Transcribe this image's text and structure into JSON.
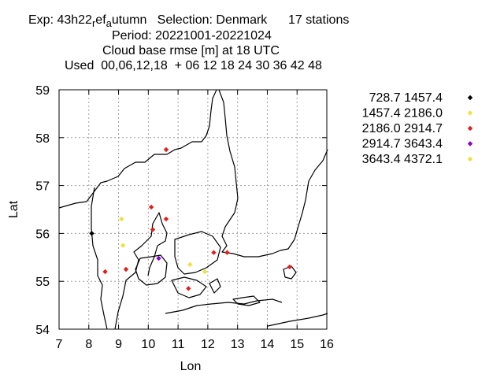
{
  "chart_data": {
    "type": "scatter",
    "title": {
      "line1_prefix": "Exp: 43h22",
      "line1_sub1": "r",
      "line1_mid": "ef",
      "line1_sub2": "a",
      "line1_rest": "utumn   Selection: Denmark      17 stations",
      "line2": "Period: 20221001-20221024",
      "line3": "Cloud base rmse [m] at  18 UTC",
      "line4": "Used  00,06,12,18  + 06 12 18 24 30 36 42 48"
    },
    "xlabel": "Lon",
    "ylabel": "Lat",
    "xlim": [
      7,
      16
    ],
    "ylim": [
      54,
      59
    ],
    "xticks": [
      "7",
      "8",
      "9",
      "10",
      "11",
      "12",
      "13",
      "14",
      "15",
      "16"
    ],
    "yticks": [
      "54",
      "55",
      "56",
      "57",
      "58",
      "59"
    ],
    "grid": true,
    "legend_position": "right",
    "series": [
      {
        "name": "728.7 1457.4",
        "color": "#000000",
        "points": [
          [
            8.1,
            56.0
          ]
        ]
      },
      {
        "name": "1457.4 2186.0",
        "color": "#f0e040",
        "points": [
          [
            9.1,
            56.3
          ],
          [
            9.15,
            55.75
          ],
          [
            11.4,
            55.35
          ],
          [
            11.9,
            55.2
          ]
        ]
      },
      {
        "name": "2186.0 2914.7",
        "color": "#e0201e",
        "points": [
          [
            10.6,
            57.75
          ],
          [
            10.1,
            56.55
          ],
          [
            10.6,
            56.3
          ],
          [
            10.15,
            56.08
          ],
          [
            8.55,
            55.2
          ],
          [
            9.25,
            55.25
          ],
          [
            12.2,
            55.6
          ],
          [
            12.65,
            55.6
          ],
          [
            11.35,
            54.85
          ],
          [
            14.75,
            55.3
          ]
        ]
      },
      {
        "name": "2914.7 3643.4",
        "color": "#8a00d4",
        "points": [
          [
            10.35,
            55.48
          ]
        ]
      },
      {
        "name": "3643.4 4372.1",
        "color": "#f0e040",
        "points": []
      }
    ]
  }
}
